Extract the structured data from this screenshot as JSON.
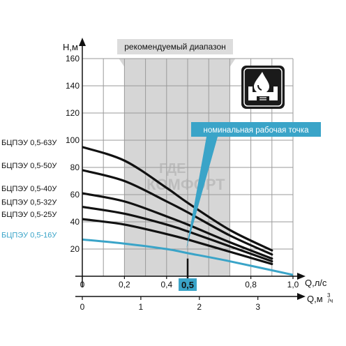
{
  "chart_data": {
    "type": "line",
    "ylabel": "H,м",
    "xlabel": "Q,л/с",
    "x2label_prefix": "Q,м",
    "x2label_sup": "3",
    "x2label_suffix": "/ч",
    "xlim": [
      0,
      1.0
    ],
    "ylim": [
      0,
      160
    ],
    "y_ticks": [
      20,
      40,
      60,
      80,
      100,
      120,
      140,
      160
    ],
    "x_ticks": [
      {
        "v": 0,
        "t": "0"
      },
      {
        "v": 0.2,
        "t": "0,2"
      },
      {
        "v": 0.4,
        "t": "0,4"
      },
      {
        "v": 0.5,
        "t": "0,5"
      },
      {
        "v": 0.8,
        "t": "0,8"
      },
      {
        "v": 1.0,
        "t": "1,0"
      }
    ],
    "x2_ticks": [
      {
        "v": 0,
        "t": "0"
      },
      {
        "v": 1,
        "t": "1"
      },
      {
        "v": 2,
        "t": "2"
      },
      {
        "v": 3,
        "t": "3"
      }
    ],
    "recommended_range": {
      "label": "рекомендуемый диапазон",
      "from": 0.2,
      "to": 0.7
    },
    "nominal_point": {
      "label": "номинальная рабочая точка",
      "x": 0.5,
      "highlight_label": "0,5"
    },
    "grid": true,
    "series": [
      {
        "name": "БЦПЭУ 0,5-63У",
        "x": [
          0,
          0.2,
          0.4,
          0.5,
          0.7,
          0.9
        ],
        "values": [
          95,
          85,
          65,
          54,
          34,
          19
        ]
      },
      {
        "name": "БЦПЭУ 0,5-50У",
        "x": [
          0,
          0.2,
          0.4,
          0.5,
          0.7,
          0.9
        ],
        "values": [
          78,
          70,
          55,
          47,
          30,
          16
        ]
      },
      {
        "name": "БЦПЭУ 0,5-40У",
        "x": [
          0,
          0.2,
          0.4,
          0.5,
          0.7,
          0.9
        ],
        "values": [
          61,
          55,
          44,
          38,
          25,
          13
        ]
      },
      {
        "name": "БЦПЭУ 0,5-32У",
        "x": [
          0,
          0.2,
          0.4,
          0.5,
          0.7,
          0.9
        ],
        "values": [
          51,
          46,
          38,
          33,
          22,
          11
        ]
      },
      {
        "name": "БЦПЭУ 0,5-25У",
        "x": [
          0,
          0.2,
          0.4,
          0.5,
          0.7,
          0.9
        ],
        "values": [
          42,
          38,
          31,
          27,
          18,
          9
        ]
      },
      {
        "name": "БЦПЭУ 0,5-16У",
        "x": [
          0,
          0.2,
          0.4,
          0.5,
          0.7,
          1.0
        ],
        "values": [
          27,
          24,
          20,
          17,
          11,
          1
        ],
        "highlight": true
      }
    ],
    "colors": {
      "curve": "#111111",
      "highlight": "#3aa4c8",
      "range_fill": "#d6d6d6",
      "grid": "#9a9a9a"
    }
  },
  "watermark": {
    "line1": "ГДЕ",
    "line2": "КОМФОРТ"
  }
}
